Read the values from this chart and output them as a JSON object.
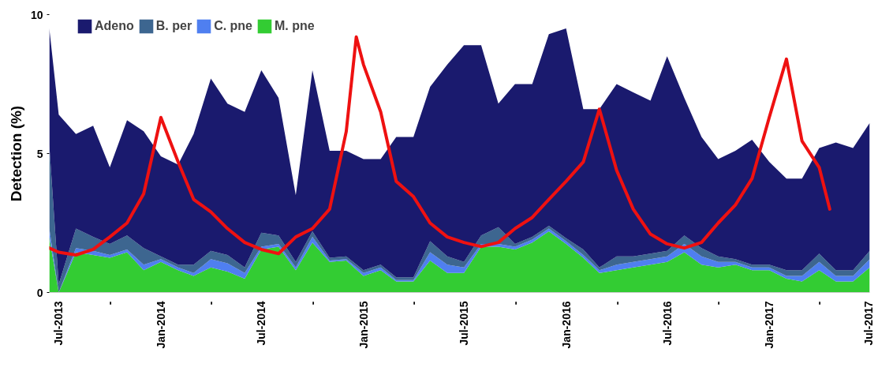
{
  "chart_data": {
    "type": "area",
    "stacked": true,
    "ylabel": "Detection (%)",
    "x": [
      "2013-06-14",
      "2013-07",
      "2013-08",
      "2013-09",
      "2013-10",
      "2013-11",
      "2013-12",
      "2014-01",
      "2014-02",
      "2014-03",
      "2014-04",
      "2014-05",
      "2014-06",
      "2014-07",
      "2014-08",
      "2014-09",
      "2014-10",
      "2014-11",
      "2014-12",
      "2015-01",
      "2015-02",
      "2015-03",
      "2015-04",
      "2015-05",
      "2015-06",
      "2015-07",
      "2015-08",
      "2015-09",
      "2015-10",
      "2015-11",
      "2015-12",
      "2016-01",
      "2016-02",
      "2016-03",
      "2016-04",
      "2016-05",
      "2016-06",
      "2016-07",
      "2016-08",
      "2016-09",
      "2016-10",
      "2016-11",
      "2016-12",
      "2017-01",
      "2017-02",
      "2017-03",
      "2017-04",
      "2017-05",
      "2017-06",
      "2017-07"
    ],
    "series": [
      {
        "name": "M. pne",
        "color": "#33cc33",
        "values": [
          2.0,
          0,
          1.45,
          1.35,
          1.25,
          1.45,
          0.8,
          1.1,
          0.8,
          0.6,
          0.9,
          0.75,
          0.5,
          1.55,
          1.65,
          0.8,
          1.8,
          1.1,
          1.15,
          0.6,
          0.8,
          0.4,
          0.4,
          1.15,
          0.7,
          0.7,
          1.65,
          1.65,
          1.55,
          1.8,
          2.2,
          1.75,
          1.25,
          0.7,
          0.8,
          0.9,
          1.0,
          1.1,
          1.45,
          1.0,
          0.9,
          1.0,
          0.8,
          0.8,
          0.5,
          0.4,
          0.8,
          0.4,
          0.4,
          0.9
        ]
      },
      {
        "name": "C. pne",
        "color": "#4f7ff0",
        "values": [
          0.3,
          0,
          0.15,
          0.15,
          0.1,
          0.1,
          0.2,
          0.1,
          0.1,
          0.1,
          0.3,
          0.3,
          0.2,
          0.1,
          0.1,
          0.1,
          0.2,
          0.05,
          0.05,
          0.1,
          0.1,
          0.05,
          0.05,
          0.3,
          0.3,
          0.2,
          0.1,
          0.1,
          0.1,
          0.1,
          0.1,
          0.1,
          0.1,
          0.1,
          0.2,
          0.2,
          0.2,
          0.2,
          0.3,
          0.3,
          0.2,
          0.1,
          0.1,
          0.1,
          0.1,
          0.2,
          0.3,
          0.2,
          0.2,
          0.3
        ]
      },
      {
        "name": "B. per",
        "color": "#3d6690",
        "values": [
          3.0,
          0.3,
          0.7,
          0.5,
          0.4,
          0.5,
          0.6,
          0.1,
          0.1,
          0.3,
          0.3,
          0.3,
          0.2,
          0.5,
          0.3,
          0.2,
          0.2,
          0.1,
          0.1,
          0.1,
          0.1,
          0.1,
          0.1,
          0.4,
          0.3,
          0.2,
          0.3,
          0.6,
          0.1,
          0.1,
          0.1,
          0.1,
          0.2,
          0.1,
          0.3,
          0.2,
          0.2,
          0.2,
          0.3,
          0.3,
          0.2,
          0.1,
          0.1,
          0.1,
          0.2,
          0.2,
          0.3,
          0.2,
          0.2,
          0.3
        ]
      },
      {
        "name": "Adeno",
        "color": "#1a1a6e",
        "values": [
          4.2,
          6.1,
          3.4,
          4.0,
          2.75,
          4.15,
          4.2,
          3.6,
          3.6,
          4.7,
          6.2,
          5.45,
          5.6,
          5.85,
          4.95,
          2.4,
          5.8,
          3.85,
          3.8,
          4.0,
          3.8,
          5.05,
          5.05,
          5.55,
          6.9,
          7.8,
          6.85,
          4.45,
          5.75,
          5.5,
          6.9,
          7.55,
          5.05,
          5.7,
          6.2,
          5.9,
          5.5,
          7.0,
          4.95,
          4.0,
          3.5,
          3.9,
          4.5,
          3.7,
          3.3,
          3.3,
          3.8,
          4.6,
          4.4,
          4.6
        ]
      },
      {
        "type": "line",
        "color": "#ee1111",
        "x": [
          "2013-06-14",
          "2013-07",
          "2013-08",
          "2013-09",
          "2013-10",
          "2013-11",
          "2013-12",
          "2014-01",
          "2014-02",
          "2014-03",
          "2014-04",
          "2014-05",
          "2014-06",
          "2014-07",
          "2014-08",
          "2014-09",
          "2014-10",
          "2014-11",
          "2014-12",
          "2014-12-19",
          "2015-01",
          "2015-02",
          "2015-03",
          "2015-04",
          "2015-05",
          "2015-06",
          "2015-07",
          "2015-08",
          "2015-09",
          "2015-10",
          "2015-11",
          "2015-12",
          "2016-01",
          "2016-02",
          "2016-03",
          "2016-04",
          "2016-05",
          "2016-06",
          "2016-07",
          "2016-08",
          "2016-09",
          "2016-10",
          "2016-11",
          "2016-12",
          "2017-01",
          "2017-02",
          "2017-03",
          "2017-04",
          "2017-04-20"
        ],
        "values": [
          1.6,
          1.45,
          1.35,
          1.55,
          2.0,
          2.5,
          3.55,
          6.3,
          4.7,
          3.35,
          2.9,
          2.3,
          1.8,
          1.55,
          1.4,
          2.0,
          2.3,
          3.0,
          5.8,
          9.2,
          8.2,
          6.5,
          4.0,
          3.45,
          2.5,
          2.0,
          1.8,
          1.65,
          1.8,
          2.3,
          2.7,
          3.35,
          4.0,
          4.7,
          6.6,
          4.4,
          3.0,
          2.1,
          1.75,
          1.6,
          1.8,
          2.5,
          3.15,
          4.1,
          6.3,
          8.4,
          5.45,
          4.5,
          3.0
        ]
      }
    ],
    "xlim": [
      "2013-06-14",
      "2017-07"
    ],
    "xticks": [
      {
        "value": "2013-07",
        "label": "Jul-2013"
      },
      {
        "value": "2013-10",
        "label": "-"
      },
      {
        "value": "2014-01",
        "label": "Jan-2014"
      },
      {
        "value": "2014-04",
        "label": "-"
      },
      {
        "value": "2014-07",
        "label": "Jul-2014"
      },
      {
        "value": "2014-10",
        "label": "-"
      },
      {
        "value": "2015-01",
        "label": "Jan-2015"
      },
      {
        "value": "2015-04",
        "label": "-"
      },
      {
        "value": "2015-07",
        "label": "Jul-2015"
      },
      {
        "value": "2015-10",
        "label": "-"
      },
      {
        "value": "2016-01",
        "label": "Jan-2016"
      },
      {
        "value": "2016-04",
        "label": "-"
      },
      {
        "value": "2016-07",
        "label": "Jul-2016"
      },
      {
        "value": "2016-10",
        "label": "-"
      },
      {
        "value": "2017-01",
        "label": "Jan-2017"
      },
      {
        "value": "2017-04",
        "label": "-"
      },
      {
        "value": "2017-07",
        "label": "Jul-2017"
      }
    ],
    "ylim": [
      0,
      10
    ],
    "yticks": [
      0,
      5,
      10
    ],
    "legend": "top left",
    "grid": false
  }
}
